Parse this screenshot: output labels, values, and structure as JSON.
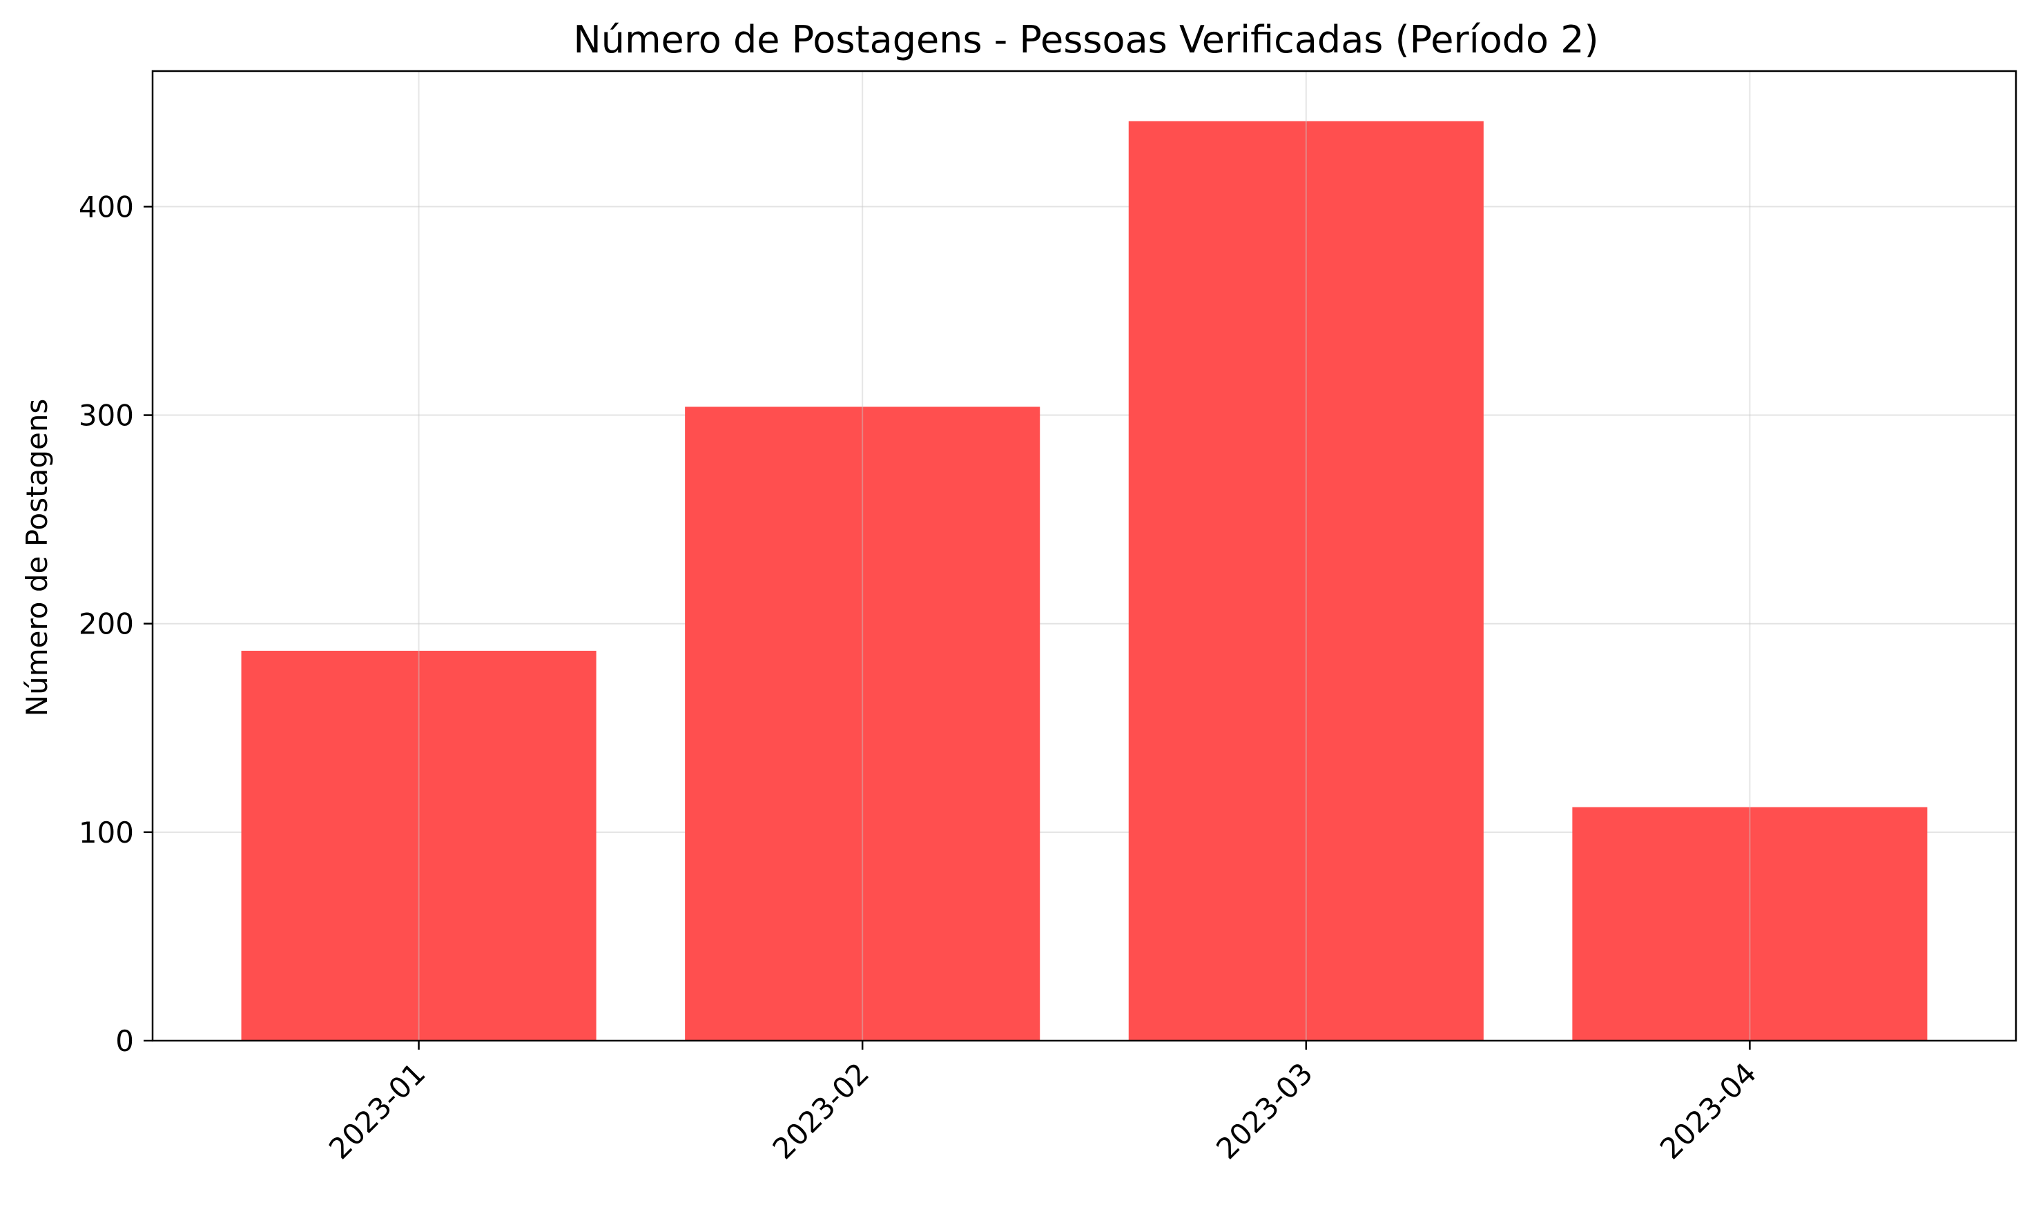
{
  "chart_data": {
    "type": "bar",
    "title": "Número de Postagens - Pessoas Verificadas (Período 2)",
    "xlabel": "",
    "ylabel": "Número de Postagens",
    "categories": [
      "2023-01",
      "2023-02",
      "2023-03",
      "2023-04"
    ],
    "values": [
      187,
      304,
      441,
      112
    ],
    "ylim": [
      0,
      465
    ],
    "yticks": [
      0,
      100,
      200,
      300,
      400
    ],
    "ytick_labels": [
      "0",
      "100",
      "200",
      "300",
      "400"
    ],
    "grid": true,
    "legend": "none",
    "bar_color": "#ff4f4f",
    "grid_color": "#e3e3e3"
  }
}
